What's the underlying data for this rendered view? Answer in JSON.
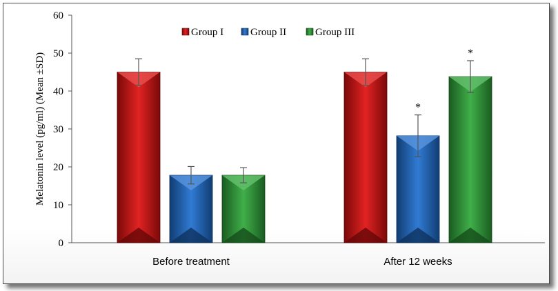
{
  "chart_data": {
    "type": "bar",
    "title": "",
    "xlabel": "",
    "ylabel": "Melatonin level (pg/ml) (Mean ±SD)",
    "ylim": [
      0,
      60
    ],
    "yticks": [
      0,
      10,
      20,
      30,
      40,
      50,
      60
    ],
    "grid": false,
    "legend_position": "top-center",
    "categories": [
      "Before treatment",
      "After 12 weeks"
    ],
    "series": [
      {
        "name": "Group I",
        "color": "#e01010",
        "values": [
          45,
          45
        ],
        "errors": [
          3.5,
          3.5
        ],
        "significance": [
          "",
          ""
        ]
      },
      {
        "name": "Group II",
        "color": "#1f6fd0",
        "values": [
          17.8,
          28.2
        ],
        "errors": [
          2.3,
          5.5
        ],
        "significance": [
          "",
          "*"
        ]
      },
      {
        "name": "Group III",
        "color": "#2fa83a",
        "values": [
          17.8,
          43.8
        ],
        "errors": [
          2.0,
          4.2
        ],
        "significance": [
          "",
          "*"
        ]
      }
    ]
  }
}
